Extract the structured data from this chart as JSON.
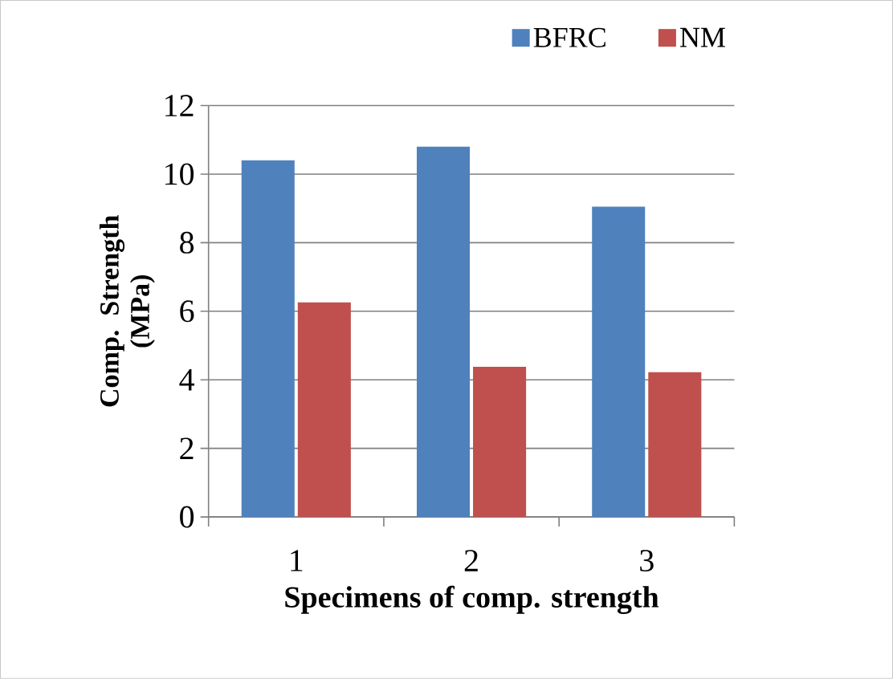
{
  "chart_data": {
    "type": "bar",
    "xlabel": "Specimens of comp. strength",
    "ylabel": "Comp. Strength (MPa)",
    "categories": [
      "1",
      "2",
      "3"
    ],
    "series": [
      {
        "name": "BFRC",
        "color": "#4f81bd",
        "values": [
          10.4,
          10.8,
          9.05
        ]
      },
      {
        "name": "NM",
        "color": "#c0504d",
        "values": [
          6.26,
          4.38,
          4.22
        ]
      }
    ],
    "ylim": [
      0,
      12
    ],
    "yticks": [
      0,
      2,
      4,
      6,
      8,
      10,
      12
    ],
    "grid": "y",
    "legend": "top right"
  }
}
